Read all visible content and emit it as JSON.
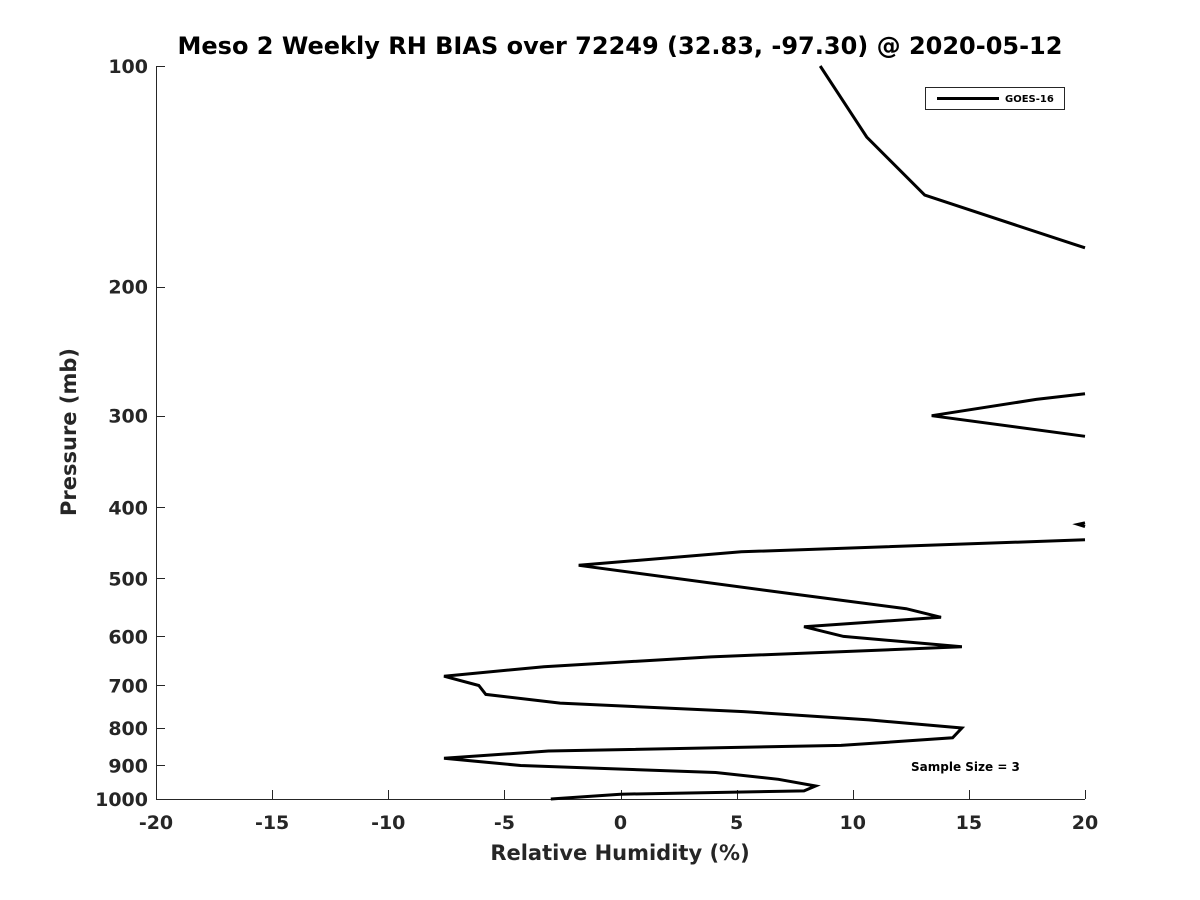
{
  "chart_data": {
    "type": "line",
    "title": "Meso 2 Weekly RH BIAS over 72249 (32.83, -97.30) @ 2020-05-12",
    "xlabel": "Relative Humidity (%)",
    "ylabel": "Pressure (mb)",
    "xlim": [
      -20,
      20
    ],
    "ylim": [
      100,
      1000
    ],
    "y_scale": "log",
    "y_reversed": true,
    "x_ticks": [
      -20,
      -15,
      -10,
      -5,
      0,
      5,
      10,
      15,
      20
    ],
    "y_ticks": [
      100,
      200,
      300,
      400,
      500,
      600,
      700,
      800,
      900,
      1000
    ],
    "grid": false,
    "legend_position": "top-right",
    "annotation": "Sample Size = 3",
    "series": [
      {
        "name": "GOES-16",
        "color": "#000000",
        "segments": [
          [
            [
              8.6,
              100
            ],
            [
              10.6,
              125
            ],
            [
              13.1,
              150
            ],
            [
              19.5,
              175
            ],
            [
              20.0,
              177
            ]
          ],
          [
            [
              20.0,
              280
            ],
            [
              17.9,
              285
            ],
            [
              13.4,
              300
            ],
            [
              20.0,
              320
            ]
          ],
          [
            [
              20.0,
              420
            ],
            [
              19.7,
              422
            ],
            [
              20.0,
              425
            ]
          ],
          [
            [
              20.0,
              443
            ],
            [
              5.2,
              460
            ],
            [
              -1.8,
              480
            ],
            [
              7.4,
              525
            ],
            [
              12.3,
              550
            ],
            [
              13.8,
              565
            ],
            [
              7.9,
              582
            ],
            [
              9.6,
              600
            ],
            [
              14.7,
              620
            ],
            [
              3.9,
              640
            ],
            [
              -3.3,
              660
            ],
            [
              -7.6,
              680
            ],
            [
              -6.1,
              700
            ],
            [
              -5.8,
              720
            ],
            [
              -2.6,
              740
            ],
            [
              5.3,
              760
            ],
            [
              10.7,
              780
            ],
            [
              14.7,
              800
            ],
            [
              14.3,
              825
            ],
            [
              9.5,
              845
            ],
            [
              -3.1,
              860
            ],
            [
              -7.6,
              880
            ],
            [
              -4.3,
              900
            ],
            [
              4.1,
              920
            ],
            [
              6.8,
              940
            ],
            [
              8.4,
              960
            ],
            [
              7.9,
              975
            ],
            [
              0.0,
              985
            ],
            [
              -3.0,
              1000
            ]
          ]
        ]
      }
    ]
  }
}
